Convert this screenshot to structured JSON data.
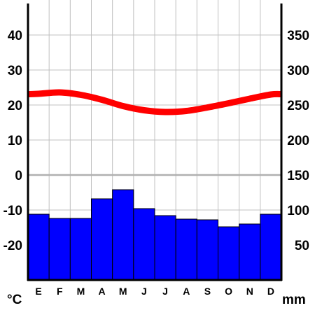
{
  "chart_data": {
    "type": "climograph",
    "categories": [
      "E",
      "F",
      "M",
      "A",
      "M",
      "J",
      "J",
      "A",
      "S",
      "O",
      "N",
      "D"
    ],
    "series": [
      {
        "kind": "line",
        "axis": "left",
        "values": [
          23.2,
          23.6,
          22.9,
          21.5,
          19.7,
          18.5,
          18.0,
          18.3,
          19.3,
          20.5,
          21.8,
          23.0
        ]
      },
      {
        "kind": "bar",
        "axis": "right",
        "values": [
          94,
          88,
          88,
          116,
          129,
          102,
          92,
          87,
          86,
          76,
          80,
          94
        ]
      }
    ],
    "left_axis": {
      "unit_label": "°C",
      "ylim": [
        -30,
        50
      ],
      "ticks": [
        -20,
        -10,
        0,
        10,
        20,
        30,
        40
      ],
      "tick_labels": [
        "-20",
        "-10",
        "0",
        "10",
        "20",
        "30",
        "40"
      ]
    },
    "right_axis": {
      "unit_label": "mm",
      "ylim": [
        0,
        400
      ],
      "ticks": [
        50,
        100,
        150,
        200,
        250,
        300,
        350
      ],
      "tick_labels": [
        "50",
        "100",
        "150",
        "200",
        "250",
        "300",
        "350"
      ]
    },
    "grid": true,
    "zero_line": true,
    "colors": {
      "temperature": "#ff0000",
      "precipitation": "#0000ff",
      "grid": "#c0c0c0",
      "axis": "#000000"
    }
  }
}
